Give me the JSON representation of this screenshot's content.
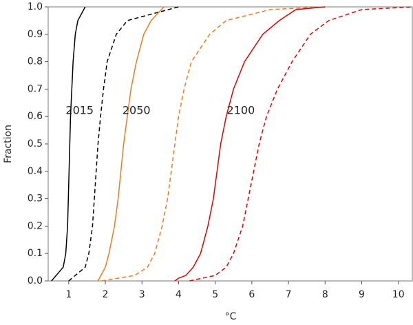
{
  "chart_data": {
    "type": "line",
    "x_label": "°C",
    "y_label": "Fraction",
    "xlim": [
      0.44,
      10.4
    ],
    "ylim": [
      0,
      1
    ],
    "xticks": [
      1,
      2,
      3,
      4,
      5,
      6,
      7,
      8,
      9,
      10
    ],
    "yticks": [
      {
        "value": 0,
        "label": "0.0"
      },
      0.1,
      0.2,
      0.3,
      0.4,
      0.5,
      0.6,
      0.7,
      0.8,
      0.9,
      {
        "value": 1,
        "label": "1.0"
      }
    ],
    "annotations": [
      "2015",
      "2050",
      "2100"
    ],
    "series": [
      {
        "color": "#000000",
        "style": "solid",
        "x": [
          0.53,
          0.85,
          0.92,
          0.97,
          1.03,
          1.05,
          1.12,
          1.18,
          1.25,
          1.45
        ],
        "values": [
          0,
          0.05,
          0.1,
          0.2,
          0.5,
          0.6,
          0.8,
          0.9,
          0.95,
          1
        ]
      },
      {
        "color": "#000000",
        "style": "dashed",
        "x": [
          1.0,
          1.45,
          1.55,
          1.65,
          1.7,
          1.8,
          1.87,
          1.95,
          2.05,
          2.3,
          2.6,
          4.0
        ],
        "values": [
          0,
          0.05,
          0.1,
          0.2,
          0.3,
          0.5,
          0.6,
          0.7,
          0.8,
          0.9,
          0.95,
          1
        ]
      },
      {
        "color": "#f07820",
        "style": "solid",
        "x": [
          1.8,
          2.0,
          2.1,
          2.25,
          2.35,
          2.5,
          2.6,
          2.7,
          2.85,
          3.05,
          3.25,
          3.6
        ],
        "values": [
          0,
          0.05,
          0.1,
          0.2,
          0.3,
          0.5,
          0.6,
          0.7,
          0.8,
          0.9,
          0.95,
          1
        ]
      },
      {
        "color": "#f07820",
        "style": "dashed",
        "x": [
          1.9,
          2.8,
          3.15,
          3.35,
          3.55,
          3.7,
          3.9,
          4.0,
          4.15,
          4.35,
          4.85,
          5.3,
          6.5,
          8.0
        ],
        "values": [
          0,
          0.02,
          0.05,
          0.1,
          0.2,
          0.3,
          0.5,
          0.6,
          0.7,
          0.8,
          0.9,
          0.95,
          0.99,
          1
        ]
      },
      {
        "color": "#e00000",
        "style": "solid",
        "x": [
          3.9,
          4.0,
          4.2,
          4.4,
          4.6,
          4.8,
          4.95,
          5.05,
          5.15,
          5.3,
          5.5,
          5.8,
          6.3,
          6.75,
          7.2,
          8.0
        ],
        "values": [
          0,
          0.01,
          0.02,
          0.05,
          0.1,
          0.2,
          0.3,
          0.4,
          0.5,
          0.6,
          0.7,
          0.8,
          0.9,
          0.95,
          0.99,
          1
        ]
      },
      {
        "color": "#e00000",
        "style": "dashed",
        "x": [
          4.3,
          5.0,
          5.3,
          5.5,
          5.75,
          5.9,
          6.05,
          6.2,
          6.4,
          6.7,
          7.1,
          7.6,
          8.1,
          9.0,
          10.4
        ],
        "values": [
          0,
          0.02,
          0.05,
          0.1,
          0.2,
          0.3,
          0.4,
          0.5,
          0.6,
          0.7,
          0.8,
          0.9,
          0.95,
          0.99,
          1
        ]
      }
    ]
  }
}
